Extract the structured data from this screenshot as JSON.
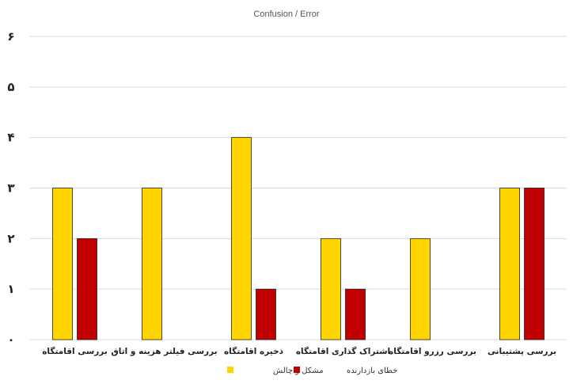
{
  "chart_data": {
    "type": "bar",
    "title": "Confusion / Error",
    "categories": [
      "بررسی پشتیبانی",
      "بررسی رزرو اقامتگاه",
      "اشتراک گذاری اقامتگاه",
      "ذخیره اقامتگاه",
      "بررسی فیلتر هزینه و اتاق",
      "بررسی اقامتگاه"
    ],
    "series": [
      {
        "name": "مشکل و چالش",
        "color": "#FFD500",
        "values": [
          3,
          2,
          2,
          4,
          3,
          3
        ]
      },
      {
        "name": "خطای بازدارنده",
        "color": "#C00000",
        "values": [
          3,
          0,
          1,
          1,
          0,
          2
        ]
      }
    ],
    "category_order": "right-to-left",
    "ylim": [
      0,
      6
    ],
    "yticks": [
      "۰",
      "۱",
      "۲",
      "۳",
      "۴",
      "۵",
      "۶"
    ],
    "grid": true,
    "legend_position": "bottom"
  }
}
